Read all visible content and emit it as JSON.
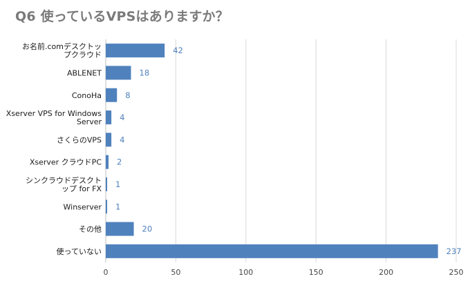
{
  "chart_data": {
    "type": "bar",
    "orientation": "horizontal",
    "title": "Q6 使っているVPSはありますか？",
    "categories": [
      "お名前.comデスクトップクラウド",
      "ABLENET",
      "ConoHa",
      "Xserver VPS for Windows Server",
      "さくらのVPS",
      "Xserver クラウドPC",
      "シンクラウドデスクトップ for FX",
      "Winserver",
      "その他",
      "使っていない"
    ],
    "category_lines": [
      [
        "お名前.comデスクトッ",
        "プクラウド"
      ],
      [
        "ABLENET"
      ],
      [
        "ConoHa"
      ],
      [
        "Xserver VPS for Windows",
        "Server"
      ],
      [
        "さくらのVPS"
      ],
      [
        "Xserver クラウドPC"
      ],
      [
        "シンクラウドデスクト",
        "ップ for FX"
      ],
      [
        "Winserver"
      ],
      [
        "その他"
      ],
      [
        "使っていない"
      ]
    ],
    "values": [
      42,
      18,
      8,
      4,
      4,
      2,
      1,
      1,
      20,
      237
    ],
    "xlim": [
      0,
      250
    ],
    "xticks": [
      0,
      50,
      100,
      150,
      200,
      250
    ],
    "grid": "vertical",
    "data_labels": true,
    "bar_color": "#4f81bd",
    "label_color": "#4f81bd",
    "grid_color": "#d9d9d9"
  }
}
